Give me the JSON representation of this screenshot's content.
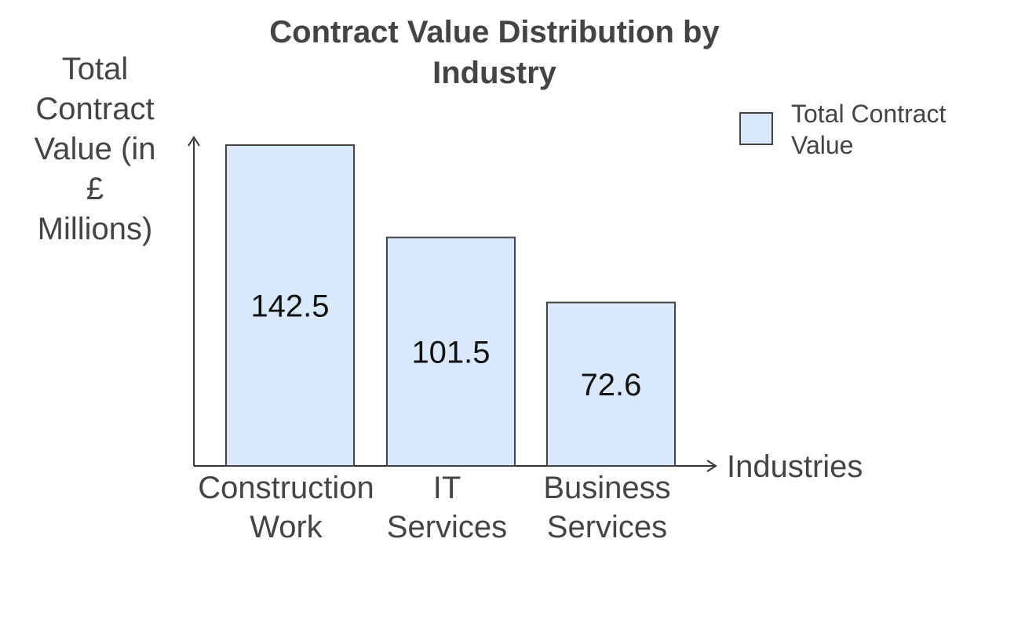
{
  "chart_data": {
    "type": "bar",
    "title": "Contract Value Distribution by Industry",
    "title_lines": [
      "Contract Value Distribution by",
      "Industry"
    ],
    "xlabel": "Industries",
    "ylabel": "Total Contract Value (in £ Millions)",
    "ylabel_lines": [
      "Total",
      "Contract",
      "Value (in",
      "£",
      "Millions)"
    ],
    "categories": [
      "Construction Work",
      "IT Services",
      "Business Services"
    ],
    "category_lines": [
      [
        "Construction",
        "Work"
      ],
      [
        "IT",
        "Services"
      ],
      [
        "Business",
        "Services"
      ]
    ],
    "series": [
      {
        "name": "Total Contract Value",
        "legend_lines": [
          "Total Contract",
          "Value"
        ],
        "values": [
          142.5,
          101.5,
          72.6
        ],
        "color": "#dae8fc",
        "stroke": "#444444"
      }
    ],
    "data_labels": [
      "142.5",
      "101.5",
      "72.6"
    ],
    "ylim": [
      0,
      142.5
    ],
    "grid": false,
    "legend_position": "top-right"
  }
}
